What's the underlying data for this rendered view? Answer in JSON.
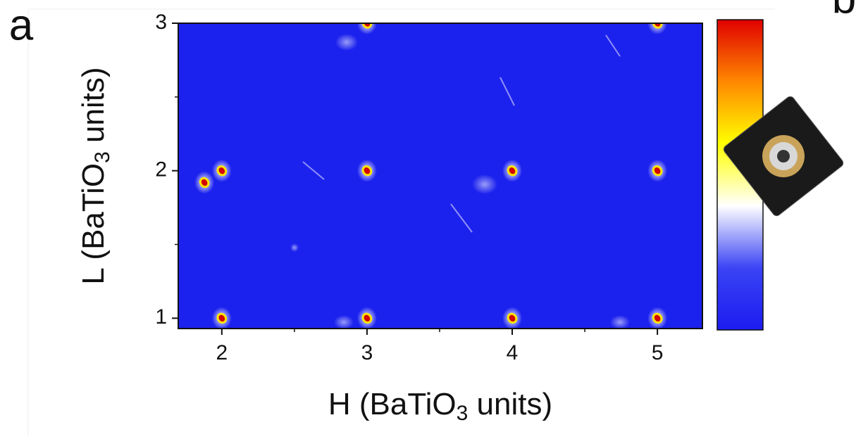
{
  "chart_data": {
    "type": "map",
    "panel_labels": [
      "a",
      "b"
    ],
    "xlabel": [
      "H (BaTiO",
      "3",
      " units)"
    ],
    "ylabel": [
      "L (BaTiO",
      "3",
      " units)"
    ],
    "xlim": [
      1.7,
      5.31
    ],
    "ylim": [
      0.93,
      3
    ],
    "xticks": [
      2,
      3,
      4,
      5
    ],
    "yticks": [
      1,
      2,
      3
    ],
    "xminor": [
      2.5,
      3.5,
      4.5
    ],
    "yminor": [
      1.5,
      2.5
    ],
    "peaks": {
      "x": [
        2,
        3,
        4,
        5,
        2,
        3,
        4,
        5,
        1.88,
        3,
        5
      ],
      "y": [
        1,
        1,
        1,
        1,
        2,
        2,
        2,
        2,
        1.92,
        3,
        3
      ]
    },
    "colormap": [
      "#1c1cf0",
      "#3a44f4",
      "#ffffff",
      "#ffff00",
      "#ff8800",
      "#e00000"
    ]
  }
}
